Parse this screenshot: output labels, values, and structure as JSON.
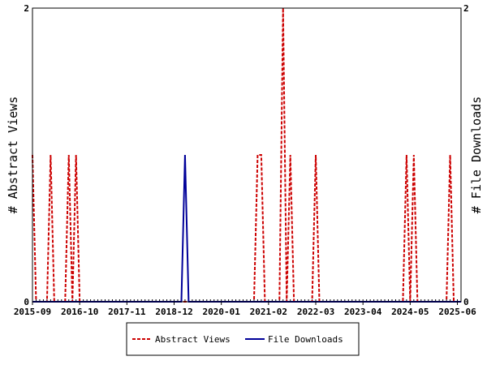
{
  "chart_data": {
    "type": "line",
    "title": "",
    "xlabel": "",
    "ylabel_left": "# Abstract Views",
    "ylabel_right": "# File Downloads",
    "x_range": [
      "2015-09",
      "2025-07"
    ],
    "ylim_left": [
      0,
      2
    ],
    "ylim_right": [
      0,
      2
    ],
    "left_ticks": [
      "0",
      "2"
    ],
    "right_ticks": [
      "0",
      "2"
    ],
    "x_ticks": [
      "2015-09",
      "2016-10",
      "2017-11",
      "2018-12",
      "2020-01",
      "2021-02",
      "2022-03",
      "2023-04",
      "2024-05",
      "2025-06"
    ],
    "grid": false,
    "legend_position": "bottom",
    "series": [
      {
        "name": "Abstract Views",
        "color": "#cc0000",
        "style": "dashed",
        "axis": "left",
        "points": [
          [
            "2015-09",
            1
          ],
          [
            "2015-10",
            0
          ],
          [
            "2016-01",
            0
          ],
          [
            "2016-02",
            1
          ],
          [
            "2016-03",
            0
          ],
          [
            "2016-06",
            0
          ],
          [
            "2016-07",
            1
          ],
          [
            "2016-08",
            0
          ],
          [
            "2016-09",
            1
          ],
          [
            "2016-10",
            0
          ],
          [
            "2020-10",
            0
          ],
          [
            "2020-11",
            1
          ],
          [
            "2020-12",
            1
          ],
          [
            "2021-01",
            0
          ],
          [
            "2021-05",
            0
          ],
          [
            "2021-06",
            2
          ],
          [
            "2021-07",
            0
          ],
          [
            "2021-08",
            1
          ],
          [
            "2021-09",
            0
          ],
          [
            "2022-02",
            0
          ],
          [
            "2022-03",
            1
          ],
          [
            "2022-04",
            0
          ],
          [
            "2024-03",
            0
          ],
          [
            "2024-04",
            1
          ],
          [
            "2024-05",
            0
          ],
          [
            "2024-06",
            1
          ],
          [
            "2024-07",
            0
          ],
          [
            "2025-03",
            0
          ],
          [
            "2025-04",
            1
          ],
          [
            "2025-05",
            0
          ]
        ]
      },
      {
        "name": "File Downloads",
        "color": "#000099",
        "style": "solid",
        "axis": "right",
        "points": [
          [
            "2015-09",
            0
          ],
          [
            "2019-02",
            0
          ],
          [
            "2019-03",
            1
          ],
          [
            "2019-04",
            0
          ],
          [
            "2025-07",
            0
          ]
        ]
      }
    ]
  }
}
